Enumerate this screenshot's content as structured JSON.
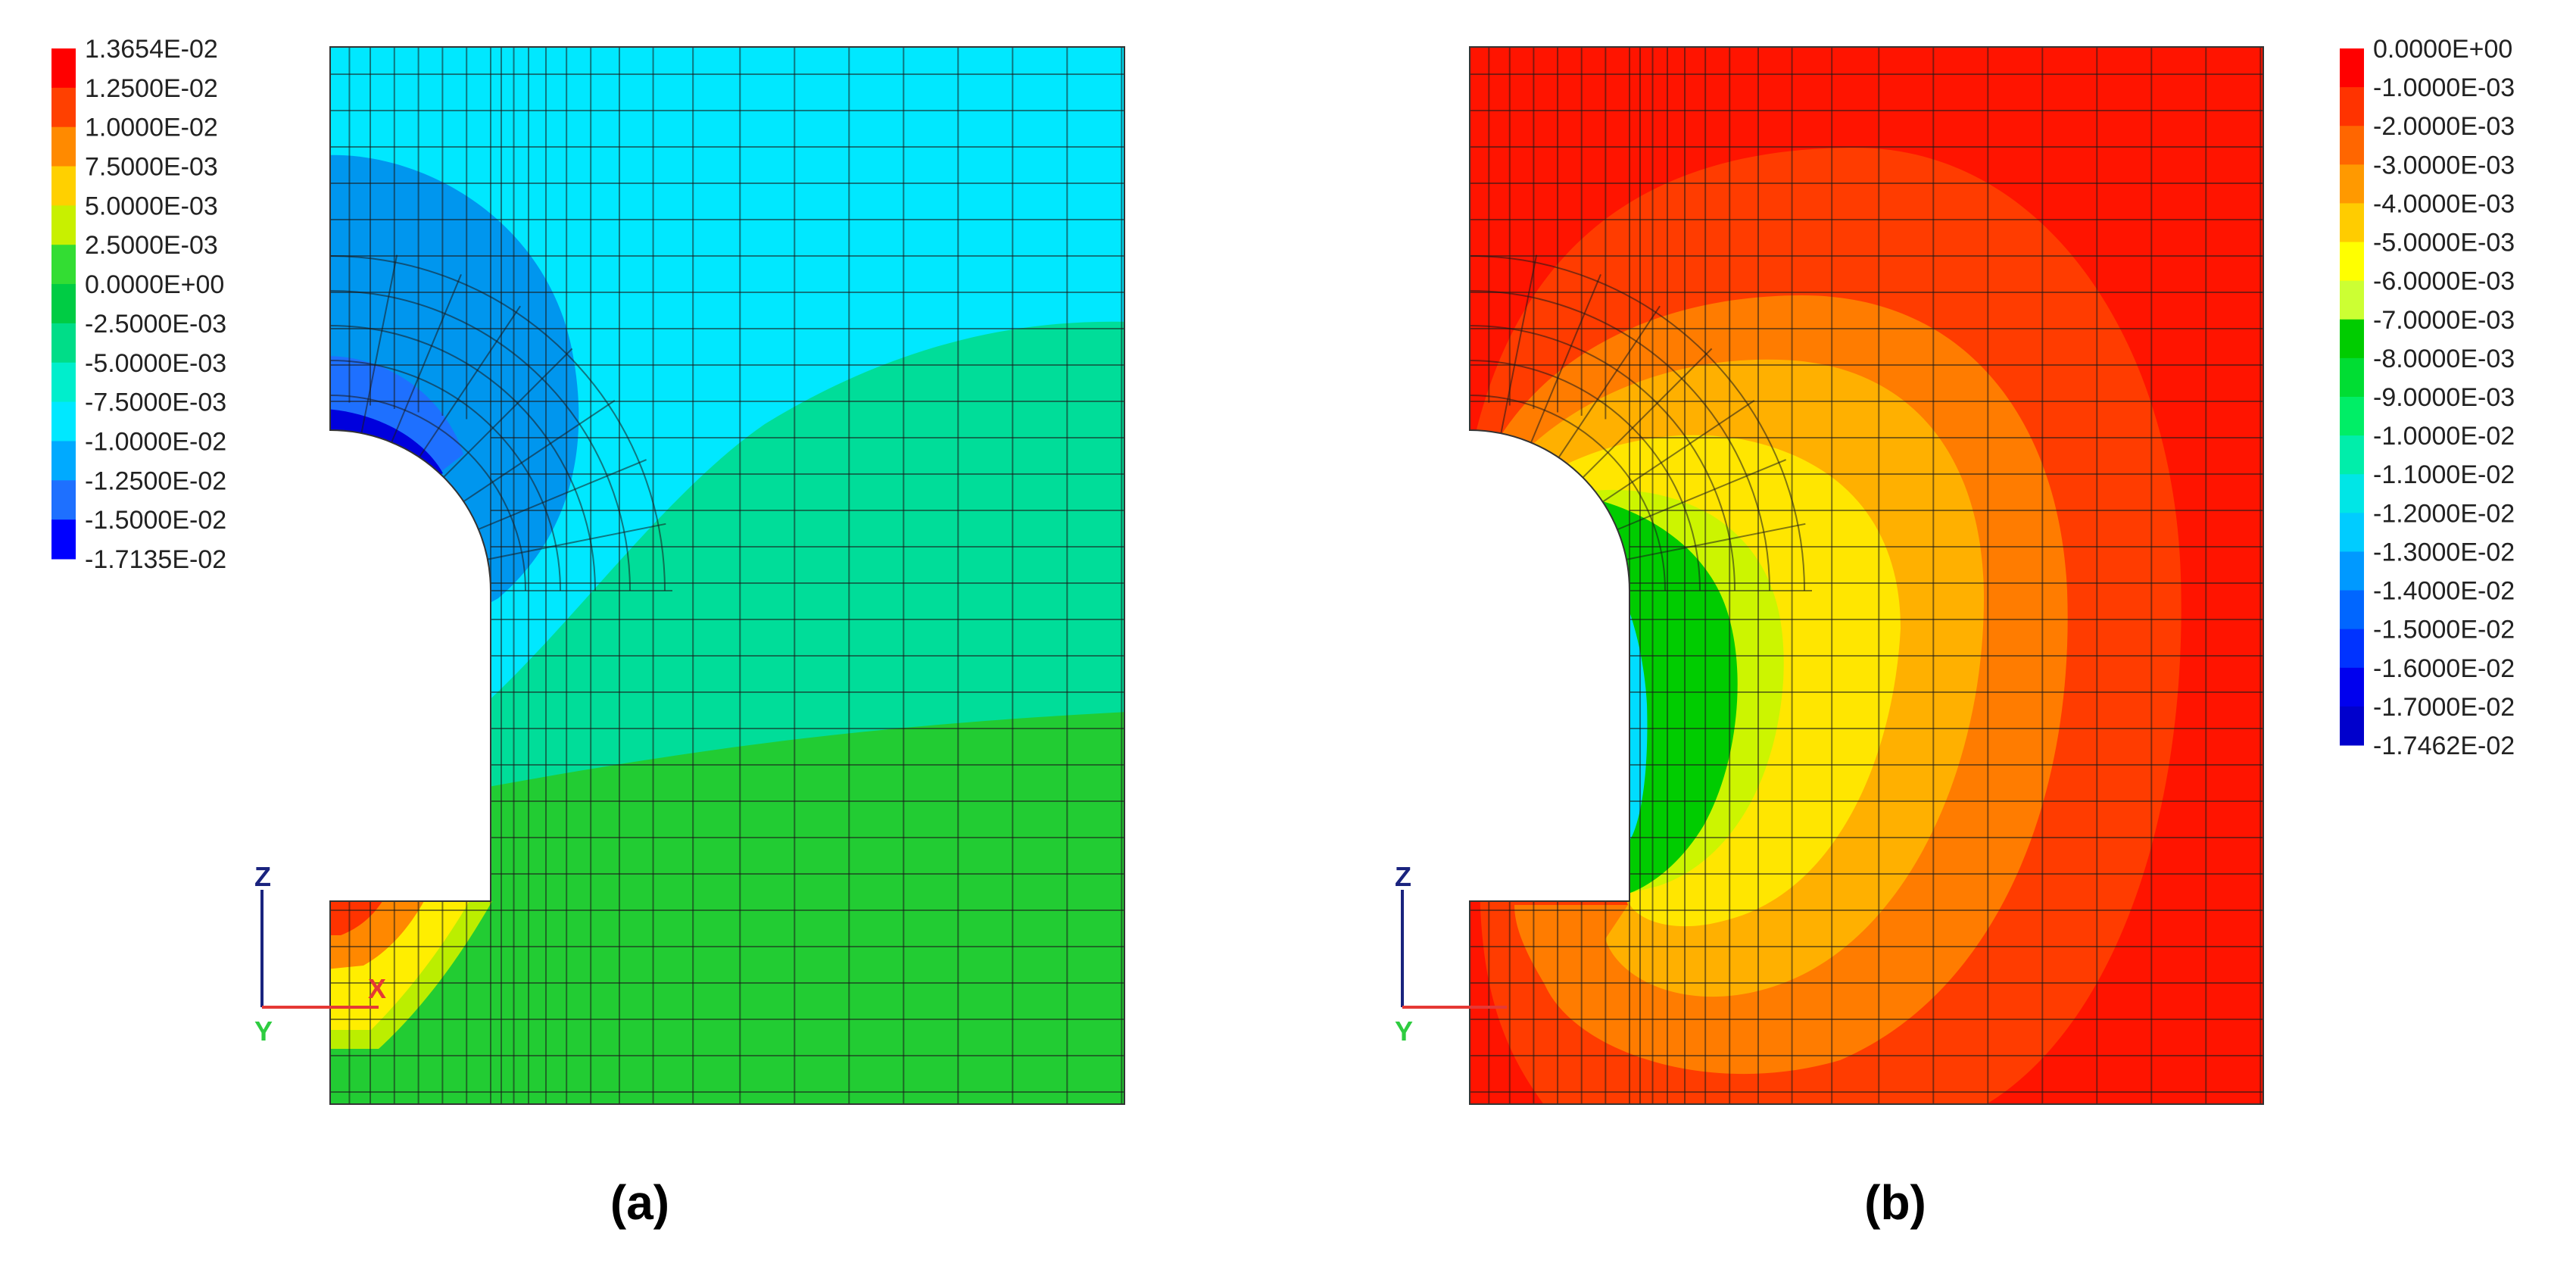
{
  "figure": {
    "panels": [
      {
        "id": "a",
        "label": "(a)",
        "legend": {
          "labels": [
            "1.3654E-02",
            "1.2500E-02",
            "1.0000E-02",
            "7.5000E-03",
            "5.0000E-03",
            "2.5000E-03",
            "0.0000E+00",
            "-2.5000E-03",
            "-5.0000E-03",
            "-7.5000E-03",
            "-1.0000E-02",
            "-1.2500E-02",
            "-1.5000E-02",
            "-1.7135E-02"
          ],
          "colors": [
            "#ff0000",
            "#ff4000",
            "#ff8a00",
            "#ffd000",
            "#c8f000",
            "#33dd33",
            "#00cc44",
            "#00dd88",
            "#00eecc",
            "#00e8ff",
            "#00aaff",
            "#1e70ff",
            "#0000ff"
          ]
        },
        "field_colors": {
          "background": "#00e8ff",
          "upper_blue_zone": "#0096ee",
          "deep_blue": "#1e70ff",
          "min_blue": "#0000dd",
          "transition_band": "#00dd99",
          "lower_green": "#22cc33",
          "corner_red": "#ff3300",
          "corner_orange": "#ff8800",
          "corner_yellow": "#ffee00",
          "corner_yellow_green": "#bbee00"
        },
        "axes": {
          "z": "Z",
          "x": "X",
          "y": "Y",
          "z_color": "#1a237e",
          "x_color": "#e53935",
          "y_color": "#2ecc40"
        }
      },
      {
        "id": "b",
        "label": "(b)",
        "legend": {
          "labels": [
            "0.0000E+00",
            "-1.0000E-03",
            "-2.0000E-03",
            "-3.0000E-03",
            "-4.0000E-03",
            "-5.0000E-03",
            "-6.0000E-03",
            "-7.0000E-03",
            "-8.0000E-03",
            "-9.0000E-03",
            "-1.0000E-02",
            "-1.1000E-02",
            "-1.2000E-02",
            "-1.3000E-02",
            "-1.4000E-02",
            "-1.5000E-02",
            "-1.6000E-02",
            "-1.7000E-02",
            "-1.7462E-02"
          ],
          "colors": [
            "#ff0000",
            "#ff3300",
            "#ff6600",
            "#ff9900",
            "#ffcc00",
            "#ffff00",
            "#ccff33",
            "#00cc00",
            "#00dd33",
            "#00ee66",
            "#00eeaa",
            "#00e6e6",
            "#00ccff",
            "#0099ff",
            "#0066ff",
            "#0033ff",
            "#0000ee",
            "#0000cc"
          ]
        },
        "field_colors": {
          "background": "#ff1400",
          "ring_1": "#ff3c00",
          "ring_2": "#ff7c00",
          "ring_3": "#ffb000",
          "ring_4": "#ffe600",
          "ring_5": "#ccf500",
          "green_core": "#00cc00",
          "cyan_edge": "#00ddff",
          "blue_edge": "#0020ee"
        },
        "axes": {
          "z": "Z",
          "y": "Y",
          "z_color": "#1a237e",
          "x_color": "#e53935",
          "y_color": "#2ecc40"
        }
      }
    ]
  }
}
